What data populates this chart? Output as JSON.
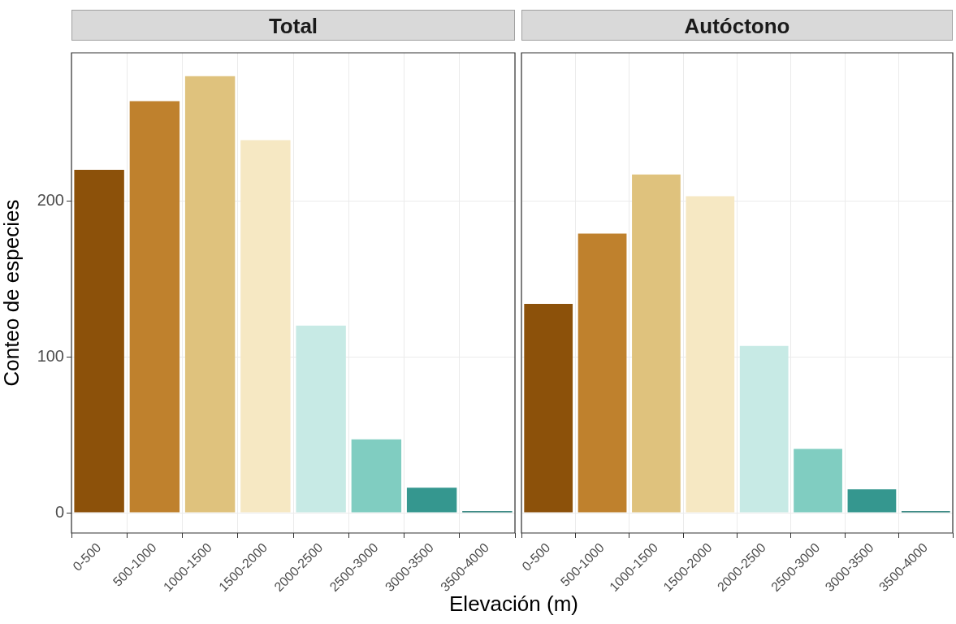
{
  "chart_data": [
    {
      "type": "bar",
      "title": "Total",
      "ylabel": "Conteo de especies",
      "xlabel": "Elevación (m)",
      "categories": [
        "0-500",
        "500-1000",
        "1000-1500",
        "1500-2000",
        "2000-2500",
        "2500-3000",
        "3000-3500",
        "3500-4000"
      ],
      "values": [
        220,
        264,
        280,
        239,
        120,
        47,
        16,
        1
      ],
      "colors": [
        "#8c510a",
        "#bf812d",
        "#dfc27d",
        "#f6e8c3",
        "#c7eae5",
        "#80cdc1",
        "#35978f",
        "#01665e"
      ],
      "ylim": [
        -13,
        295
      ],
      "yticks": [
        0,
        100,
        200
      ],
      "grid": true
    },
    {
      "type": "bar",
      "title": "Autóctono",
      "categories": [
        "0-500",
        "500-1000",
        "1000-1500",
        "1500-2000",
        "2000-2500",
        "2500-3000",
        "3000-3500",
        "3500-4000"
      ],
      "values": [
        134,
        179,
        217,
        203,
        107,
        41,
        15,
        1
      ],
      "colors": [
        "#8c510a",
        "#bf812d",
        "#dfc27d",
        "#f6e8c3",
        "#c7eae5",
        "#80cdc1",
        "#35978f",
        "#01665e"
      ],
      "ylim": [
        -13,
        295
      ],
      "yticks": [
        0,
        100,
        200
      ],
      "grid": true,
      "tick_labels": "x"
    }
  ]
}
